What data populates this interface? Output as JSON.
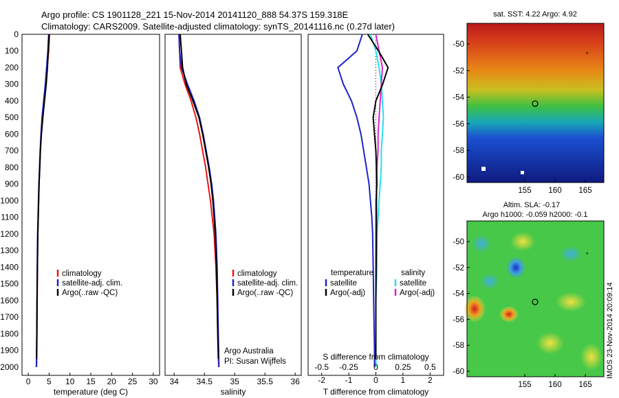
{
  "header": {
    "line1": "Argo profile: CS 1901128_221 15-Nov-2014 20141120_888 54.37S 159.318E",
    "line2": "Climatology: CARS2009. Satellite-adjusted climatology: synTS_20141116.nc (0.27d later)"
  },
  "colors": {
    "climatology": "#ee1111",
    "satellite": "#1a22cc",
    "argo": "#000000",
    "sal_satellite": "#22e0ee",
    "sal_argo": "#e022cc"
  },
  "panels": {
    "temperature": {
      "xlabel": "temperature (deg C)",
      "xticks": [
        "0",
        "5",
        "10",
        "15",
        "20",
        "25",
        "30"
      ],
      "legend": [
        "climatology",
        "satellite-adj. clim.",
        "Argo(..raw -QC)"
      ]
    },
    "salinity": {
      "xlabel": "salinity",
      "xticks": [
        "34",
        "34.5",
        "35",
        "35.5",
        "36"
      ],
      "legend": [
        "climatology",
        "satellite-adj. clim.",
        "Argo(..raw -QC)"
      ],
      "note1": "Argo Australia",
      "note2": "PI: Susan Wijffels"
    },
    "difference": {
      "xlabel": "T difference from climatology",
      "xlabel_top": "S difference from climatology",
      "xticks_T": [
        "-2",
        "-1",
        "0",
        "1",
        "2"
      ],
      "xticks_S": [
        "-0.5",
        "-0.25",
        "0",
        "0.25",
        "0.5"
      ],
      "legend_t_title": "temperature",
      "legend_s_title": "salinity",
      "legend_t": [
        "satellite",
        "Argo(-adj)"
      ],
      "legend_s": [
        "satellite",
        "Argo(-adj)"
      ]
    },
    "depth_ticks": [
      "0",
      "100",
      "200",
      "300",
      "400",
      "500",
      "600",
      "700",
      "800",
      "900",
      "1000",
      "1100",
      "1200",
      "1300",
      "1400",
      "1500",
      "1600",
      "1700",
      "1800",
      "1900",
      "2000"
    ]
  },
  "maps": {
    "sst_title": "sat. SST: 4.22 Argo: 4.92",
    "sla_title1": "Altim. SLA: -0.17",
    "sla_title2": "Argo h1000: -0.059 h2000: -0.1",
    "lat_ticks": [
      "-50",
      "-52",
      "-54",
      "-56",
      "-58",
      "-60"
    ],
    "lon_ticks": [
      "155",
      "160",
      "165"
    ],
    "stamp": "IMOS 23-Nov-2014 20:09:14"
  },
  "chart_data": [
    {
      "type": "line",
      "title": "",
      "xlabel": "temperature (deg C)",
      "ylabel": "",
      "xlim": [
        -1.5,
        31.5
      ],
      "ylim": [
        2050,
        0
      ],
      "series": [
        {
          "name": "climatology",
          "x": [
            5.1,
            4.9,
            4.5,
            4.2,
            3.8,
            3.4,
            3.1,
            2.9,
            2.75,
            2.6,
            2.5,
            2.4,
            2.3,
            2.2,
            2.15,
            2.1,
            2.05,
            2.0
          ],
          "y": [
            0,
            100,
            200,
            300,
            400,
            500,
            600,
            700,
            800,
            900,
            1000,
            1100,
            1200,
            1400,
            1600,
            1800,
            1900,
            2000
          ]
        },
        {
          "name": "satellite-adj. clim.",
          "x": [
            4.9,
            4.7,
            4.4,
            4.1,
            3.7,
            3.3,
            3.05,
            2.85,
            2.7,
            2.55,
            2.45,
            2.35,
            2.25,
            2.15,
            2.1,
            2.05,
            2.0,
            1.95
          ],
          "y": [
            0,
            100,
            200,
            300,
            400,
            500,
            600,
            700,
            800,
            900,
            1000,
            1100,
            1200,
            1400,
            1600,
            1800,
            1900,
            2000
          ]
        },
        {
          "name": "Argo(..raw -QC)",
          "x": [
            5.0,
            4.8,
            4.6,
            4.3,
            3.9,
            3.5,
            3.15,
            2.9,
            2.75,
            2.6,
            2.5,
            2.4,
            2.3,
            2.2,
            2.1,
            2.05,
            2.0
          ],
          "y": [
            0,
            100,
            200,
            300,
            400,
            500,
            600,
            700,
            800,
            900,
            1000,
            1100,
            1200,
            1400,
            1600,
            1800,
            1950
          ]
        }
      ]
    },
    {
      "type": "line",
      "title": "",
      "xlabel": "salinity",
      "ylabel": "",
      "xlim": [
        33.85,
        36.1
      ],
      "ylim": [
        2050,
        0
      ],
      "series": [
        {
          "name": "climatology",
          "x": [
            34.08,
            34.09,
            34.1,
            34.18,
            34.28,
            34.36,
            34.42,
            34.47,
            34.52,
            34.56,
            34.6,
            34.63,
            34.66,
            34.69,
            34.71,
            34.72,
            34.73,
            34.735
          ],
          "y": [
            0,
            100,
            200,
            300,
            400,
            500,
            600,
            700,
            800,
            900,
            1000,
            1100,
            1200,
            1400,
            1600,
            1800,
            1900,
            2000
          ]
        },
        {
          "name": "satellite-adj. clim.",
          "x": [
            34.08,
            34.09,
            34.12,
            34.22,
            34.33,
            34.42,
            34.48,
            34.53,
            34.58,
            34.62,
            34.65,
            34.67,
            34.69,
            34.71,
            34.72,
            34.73,
            34.735,
            34.74
          ],
          "y": [
            0,
            100,
            200,
            300,
            400,
            500,
            600,
            700,
            800,
            900,
            1000,
            1100,
            1200,
            1400,
            1600,
            1800,
            1900,
            2000
          ]
        },
        {
          "name": "Argo(..raw -QC)",
          "x": [
            34.1,
            34.12,
            34.14,
            34.2,
            34.31,
            34.41,
            34.47,
            34.52,
            34.57,
            34.61,
            34.64,
            34.66,
            34.68,
            34.7,
            34.71,
            34.72,
            34.73
          ],
          "y": [
            0,
            100,
            200,
            300,
            400,
            500,
            600,
            700,
            800,
            900,
            1000,
            1100,
            1200,
            1400,
            1600,
            1800,
            1950
          ]
        }
      ]
    },
    {
      "type": "line",
      "title": "",
      "xlabel": "T difference from climatology",
      "ylabel": "",
      "xlim": [
        -2.5,
        2.5
      ],
      "ylim": [
        2050,
        0
      ],
      "series": [
        {
          "name": "satellite",
          "x": [
            -0.5,
            -0.7,
            -1.4,
            -1.2,
            -0.9,
            -0.7,
            -0.55,
            -0.45,
            -0.35,
            -0.25,
            -0.2,
            -0.15,
            -0.12,
            -0.1,
            -0.08,
            -0.06,
            -0.05,
            -0.05
          ],
          "y": [
            0,
            100,
            200,
            300,
            400,
            500,
            600,
            700,
            800,
            900,
            1000,
            1100,
            1200,
            1400,
            1600,
            1800,
            1900,
            2000
          ]
        },
        {
          "name": "Argo(-adj)",
          "x": [
            -0.3,
            0.1,
            0.45,
            0.25,
            0.0,
            -0.1,
            -0.05,
            0.0,
            0.02,
            0.03,
            0.02,
            0.02,
            0.02,
            0.01,
            0.0,
            0.0,
            0.0
          ],
          "y": [
            0,
            100,
            200,
            300,
            400,
            500,
            600,
            700,
            800,
            900,
            1000,
            1100,
            1200,
            1400,
            1600,
            1800,
            1950
          ]
        }
      ]
    },
    {
      "type": "line",
      "title": "",
      "xlabel": "S difference from climatology",
      "ylabel": "",
      "xlim": [
        -0.625,
        0.625
      ],
      "ylim": [
        2050,
        0
      ],
      "series": [
        {
          "name": "satellite",
          "x": [
            -0.05,
            0.0,
            0.03,
            0.05,
            0.06,
            0.07,
            0.06,
            0.05,
            0.05,
            0.04,
            0.03,
            0.02,
            0.01,
            0.01,
            0.0,
            0.0,
            0.0,
            0.0
          ],
          "y": [
            0,
            100,
            200,
            300,
            400,
            500,
            600,
            700,
            800,
            900,
            1000,
            1100,
            1200,
            1400,
            1600,
            1800,
            1900,
            2000
          ]
        },
        {
          "name": "Argo(-adj)",
          "x": [
            0.0,
            0.03,
            0.06,
            0.05,
            0.04,
            0.03,
            0.02,
            0.02,
            0.01,
            0.01,
            0.0,
            0.0,
            0.0,
            0.0,
            0.0,
            0.0,
            0.0
          ],
          "y": [
            0,
            100,
            200,
            300,
            400,
            500,
            600,
            700,
            800,
            900,
            1000,
            1100,
            1200,
            1400,
            1600,
            1800,
            1950
          ]
        }
      ]
    }
  ]
}
